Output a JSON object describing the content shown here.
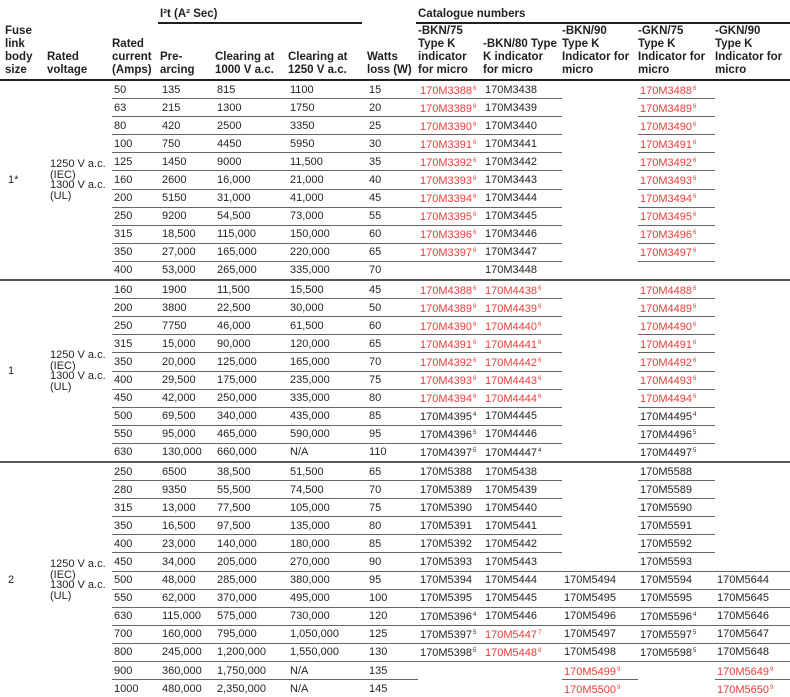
{
  "header": {
    "i2t_group": "I²t (A² Sec)",
    "catalogue_group": "Catalogue numbers",
    "columns": [
      "Fuse link body size",
      "Rated voltage",
      "Rated current (Amps)",
      "Pre- arcing",
      "Clearing at 1000 V a.c.",
      "Clearing at 1250 V a.c.",
      "Watts loss (W)",
      "-BKN/75 Type K indicator for micro",
      "-BKN/80 Type K indicator for micro",
      "-BKN/90 Type K Indicator for micro",
      "-GKN/75 Type K Indicator for micro",
      "-GKN/90 Type K Indicator for micro"
    ]
  },
  "colors": {
    "red": "#ee3a3a",
    "text": "#231f20"
  },
  "groups": [
    {
      "size": "1*",
      "voltage": [
        "1250 V a.c.",
        "(IEC)",
        "1300 V a.c.",
        "(UL)"
      ],
      "rows": [
        {
          "v": [
            "50",
            "135",
            "815",
            "1100",
            "15"
          ],
          "cat": [
            {
              "n": "170M3388",
              "s": "6",
              "r": true
            },
            {
              "n": "170M3438"
            },
            {
              "n": ""
            },
            {
              "n": "170M3488",
              "s": "6",
              "r": true
            },
            {
              "n": ""
            }
          ]
        },
        {
          "v": [
            "63",
            "215",
            "1300",
            "1750",
            "20"
          ],
          "cat": [
            {
              "n": "170M3389",
              "s": "6",
              "r": true
            },
            {
              "n": "170M3439"
            },
            {
              "n": ""
            },
            {
              "n": "170M3489",
              "s": "6",
              "r": true
            },
            {
              "n": ""
            }
          ]
        },
        {
          "v": [
            "80",
            "420",
            "2500",
            "3350",
            "25"
          ],
          "cat": [
            {
              "n": "170M3390",
              "s": "6",
              "r": true
            },
            {
              "n": "170M3440"
            },
            {
              "n": ""
            },
            {
              "n": "170M3490",
              "s": "6",
              "r": true
            },
            {
              "n": ""
            }
          ]
        },
        {
          "v": [
            "100",
            "750",
            "4450",
            "5950",
            "30"
          ],
          "cat": [
            {
              "n": "170M3391",
              "s": "6",
              "r": true
            },
            {
              "n": "170M3441"
            },
            {
              "n": ""
            },
            {
              "n": "170M3491",
              "s": "6",
              "r": true
            },
            {
              "n": ""
            }
          ]
        },
        {
          "v": [
            "125",
            "1450",
            "9000",
            "11,500",
            "35"
          ],
          "cat": [
            {
              "n": "170M3392",
              "s": "6",
              "r": true
            },
            {
              "n": "170M3442"
            },
            {
              "n": ""
            },
            {
              "n": "170M3492",
              "s": "6",
              "r": true
            },
            {
              "n": ""
            }
          ]
        },
        {
          "v": [
            "160",
            "2600",
            "16,000",
            "21,000",
            "40"
          ],
          "cat": [
            {
              "n": "170M3393",
              "s": "6",
              "r": true
            },
            {
              "n": "170M3443"
            },
            {
              "n": ""
            },
            {
              "n": "170M3493",
              "s": "6",
              "r": true
            },
            {
              "n": ""
            }
          ]
        },
        {
          "v": [
            "200",
            "5150",
            "31,000",
            "41,000",
            "45"
          ],
          "cat": [
            {
              "n": "170M3394",
              "s": "6",
              "r": true
            },
            {
              "n": "170M3444"
            },
            {
              "n": ""
            },
            {
              "n": "170M3494",
              "s": "6",
              "r": true
            },
            {
              "n": ""
            }
          ]
        },
        {
          "v": [
            "250",
            "9200",
            "54,500",
            "73,000",
            "55"
          ],
          "cat": [
            {
              "n": "170M3395",
              "s": "6",
              "r": true
            },
            {
              "n": "170M3445"
            },
            {
              "n": ""
            },
            {
              "n": "170M3495",
              "s": "6",
              "r": true
            },
            {
              "n": ""
            }
          ]
        },
        {
          "v": [
            "315",
            "18,500",
            "115,000",
            "150,000",
            "60"
          ],
          "cat": [
            {
              "n": "170M3396",
              "s": "6",
              "r": true
            },
            {
              "n": "170M3446"
            },
            {
              "n": ""
            },
            {
              "n": "170M3496",
              "s": "6",
              "r": true
            },
            {
              "n": ""
            }
          ]
        },
        {
          "v": [
            "350",
            "27,000",
            "165,000",
            "220,000",
            "65"
          ],
          "cat": [
            {
              "n": "170M3397",
              "s": "6",
              "r": true
            },
            {
              "n": "170M3447"
            },
            {
              "n": ""
            },
            {
              "n": "170M3497",
              "s": "6",
              "r": true
            },
            {
              "n": ""
            }
          ]
        },
        {
          "v": [
            "400",
            "53,000",
            "265,000",
            "335,000",
            "70"
          ],
          "cat": [
            {
              "n": ""
            },
            {
              "n": "170M3448"
            },
            {
              "n": ""
            },
            {
              "n": ""
            },
            {
              "n": ""
            }
          ]
        }
      ]
    },
    {
      "size": "1",
      "voltage": [
        "1250 V a.c.",
        "(IEC)",
        "1300 V a.c.",
        "(UL)"
      ],
      "rows": [
        {
          "v": [
            "160",
            "1900",
            "11,500",
            "15,500",
            "45"
          ],
          "cat": [
            {
              "n": "170M4388",
              "s": "6",
              "r": true
            },
            {
              "n": "170M4438",
              "s": "6",
              "r": true
            },
            {
              "n": ""
            },
            {
              "n": "170M4488",
              "s": "6",
              "r": true
            },
            {
              "n": ""
            }
          ]
        },
        {
          "v": [
            "200",
            "3800",
            "22,500",
            "30,000",
            "50"
          ],
          "cat": [
            {
              "n": "170M4389",
              "s": "6",
              "r": true
            },
            {
              "n": "170M4439",
              "s": "6",
              "r": true
            },
            {
              "n": ""
            },
            {
              "n": "170M4489",
              "s": "6",
              "r": true
            },
            {
              "n": ""
            }
          ]
        },
        {
          "v": [
            "250",
            "7750",
            "46,000",
            "61,500",
            "60"
          ],
          "cat": [
            {
              "n": "170M4390",
              "s": "6",
              "r": true
            },
            {
              "n": "170M4440",
              "s": "6",
              "r": true
            },
            {
              "n": ""
            },
            {
              "n": "170M4490",
              "s": "6",
              "r": true
            },
            {
              "n": ""
            }
          ]
        },
        {
          "v": [
            "315",
            "15,000",
            "90,000",
            "120,000",
            "65"
          ],
          "cat": [
            {
              "n": "170M4391",
              "s": "6",
              "r": true
            },
            {
              "n": "170M4441",
              "s": "6",
              "r": true
            },
            {
              "n": ""
            },
            {
              "n": "170M4491",
              "s": "6",
              "r": true
            },
            {
              "n": ""
            }
          ]
        },
        {
          "v": [
            "350",
            "20,000",
            "125,000",
            "165,000",
            "70"
          ],
          "cat": [
            {
              "n": "170M4392",
              "s": "6",
              "r": true
            },
            {
              "n": "170M4442",
              "s": "6",
              "r": true
            },
            {
              "n": ""
            },
            {
              "n": "170M4492",
              "s": "6",
              "r": true
            },
            {
              "n": ""
            }
          ]
        },
        {
          "v": [
            "400",
            "29,500",
            "175,000",
            "235,000",
            "75"
          ],
          "cat": [
            {
              "n": "170M4393",
              "s": "6",
              "r": true
            },
            {
              "n": "170M4443",
              "s": "6",
              "r": true
            },
            {
              "n": ""
            },
            {
              "n": "170M4493",
              "s": "6",
              "r": true
            },
            {
              "n": ""
            }
          ]
        },
        {
          "v": [
            "450",
            "42,000",
            "250,000",
            "335,000",
            "80"
          ],
          "cat": [
            {
              "n": "170M4394",
              "s": "6",
              "r": true
            },
            {
              "n": "170M4444",
              "s": "6",
              "r": true
            },
            {
              "n": ""
            },
            {
              "n": "170M4494",
              "s": "6",
              "r": true
            },
            {
              "n": ""
            }
          ]
        },
        {
          "v": [
            "500",
            "69,500",
            "340,000",
            "435,000",
            "85"
          ],
          "cat": [
            {
              "n": "170M4395",
              "s": "4"
            },
            {
              "n": "170M4445"
            },
            {
              "n": ""
            },
            {
              "n": "170M4495",
              "s": "4"
            },
            {
              "n": ""
            }
          ]
        },
        {
          "v": [
            "550",
            "95,000",
            "465,000",
            "590,000",
            "95"
          ],
          "cat": [
            {
              "n": "170M4396",
              "s": "5"
            },
            {
              "n": "170M4446"
            },
            {
              "n": ""
            },
            {
              "n": "170M4496",
              "s": "5"
            },
            {
              "n": ""
            }
          ]
        },
        {
          "v": [
            "630",
            "130,000",
            "660,000",
            "N/A",
            "110"
          ],
          "cat": [
            {
              "n": "170M4397",
              "s": "5"
            },
            {
              "n": "170M4447",
              "s": "4"
            },
            {
              "n": ""
            },
            {
              "n": "170M4497",
              "s": "5"
            },
            {
              "n": ""
            }
          ]
        }
      ]
    },
    {
      "size": "2",
      "voltage": [
        "1250 V a.c.",
        "(IEC)",
        "1300 V a.c.",
        "(UL)"
      ],
      "rows": [
        {
          "v": [
            "250",
            "6500",
            "38,500",
            "51,500",
            "65"
          ],
          "cat": [
            {
              "n": "170M5388"
            },
            {
              "n": "170M5438"
            },
            {
              "n": ""
            },
            {
              "n": "170M5588"
            },
            {
              "n": ""
            }
          ]
        },
        {
          "v": [
            "280",
            "9350",
            "55,500",
            "74,500",
            "70"
          ],
          "cat": [
            {
              "n": "170M5389"
            },
            {
              "n": "170M5439"
            },
            {
              "n": ""
            },
            {
              "n": "170M5589"
            },
            {
              "n": ""
            }
          ]
        },
        {
          "v": [
            "315",
            "13,000",
            "77,500",
            "105,000",
            "75"
          ],
          "cat": [
            {
              "n": "170M5390"
            },
            {
              "n": "170M5440"
            },
            {
              "n": ""
            },
            {
              "n": "170M5590"
            },
            {
              "n": ""
            }
          ]
        },
        {
          "v": [
            "350",
            "16,500",
            "97,500",
            "135,000",
            "80"
          ],
          "cat": [
            {
              "n": "170M5391"
            },
            {
              "n": "170M5441"
            },
            {
              "n": ""
            },
            {
              "n": "170M5591"
            },
            {
              "n": ""
            }
          ]
        },
        {
          "v": [
            "400",
            "23,000",
            "140,000",
            "180,000",
            "85"
          ],
          "cat": [
            {
              "n": "170M5392"
            },
            {
              "n": "170M5442"
            },
            {
              "n": ""
            },
            {
              "n": "170M5592"
            },
            {
              "n": ""
            }
          ]
        },
        {
          "v": [
            "450",
            "34,000",
            "205,000",
            "270,000",
            "90"
          ],
          "cat": [
            {
              "n": "170M5393"
            },
            {
              "n": "170M5443"
            },
            {
              "n": ""
            },
            {
              "n": "170M5593"
            },
            {
              "n": ""
            }
          ]
        },
        {
          "v": [
            "500",
            "48,000",
            "285,000",
            "380,000",
            "95"
          ],
          "cat": [
            {
              "n": "170M5394"
            },
            {
              "n": "170M5444"
            },
            {
              "n": "170M5494"
            },
            {
              "n": "170M5594"
            },
            {
              "n": "170M5644"
            }
          ]
        },
        {
          "v": [
            "550",
            "62,000",
            "370,000",
            "495,000",
            "100"
          ],
          "cat": [
            {
              "n": "170M5395"
            },
            {
              "n": "170M5445"
            },
            {
              "n": "170M5495"
            },
            {
              "n": "170M5595"
            },
            {
              "n": "170M5645"
            }
          ]
        },
        {
          "v": [
            "630",
            "115,000",
            "575,000",
            "730,000",
            "120"
          ],
          "cat": [
            {
              "n": "170M5396",
              "s": "4"
            },
            {
              "n": "170M5446"
            },
            {
              "n": "170M5496"
            },
            {
              "n": "170M5596",
              "s": "4"
            },
            {
              "n": "170M5646"
            }
          ]
        },
        {
          "v": [
            "700",
            "160,000",
            "795,000",
            "1,050,000",
            "125"
          ],
          "cat": [
            {
              "n": "170M5397",
              "s": "5"
            },
            {
              "n": "170M5447",
              "s": "7",
              "r": true
            },
            {
              "n": "170M5497"
            },
            {
              "n": "170M5597",
              "s": "5"
            },
            {
              "n": "170M5647"
            }
          ]
        },
        {
          "v": [
            "800",
            "245,000",
            "1,200,000",
            "1,550,000",
            "130"
          ],
          "cat": [
            {
              "n": "170M5398",
              "s": "5"
            },
            {
              "n": "170M5448",
              "s": "8",
              "r": true
            },
            {
              "n": "170M5498"
            },
            {
              "n": "170M5598",
              "s": "5"
            },
            {
              "n": "170M5648"
            }
          ]
        },
        {
          "v": [
            "900",
            "360,000",
            "1,750,000",
            "N/A",
            "135"
          ],
          "cat": [
            {
              "n": ""
            },
            {
              "n": ""
            },
            {
              "n": "170M5499",
              "s": "9",
              "r": true
            },
            {
              "n": ""
            },
            {
              "n": "170M5649",
              "s": "9",
              "r": true
            }
          ]
        },
        {
          "v": [
            "1000",
            "480,000",
            "2,350,000",
            "N/A",
            "145"
          ],
          "cat": [
            {
              "n": ""
            },
            {
              "n": ""
            },
            {
              "n": "170M5500",
              "s": "9",
              "r": true
            },
            {
              "n": ""
            },
            {
              "n": "170M5650",
              "s": "9",
              "r": true
            }
          ]
        }
      ]
    }
  ]
}
